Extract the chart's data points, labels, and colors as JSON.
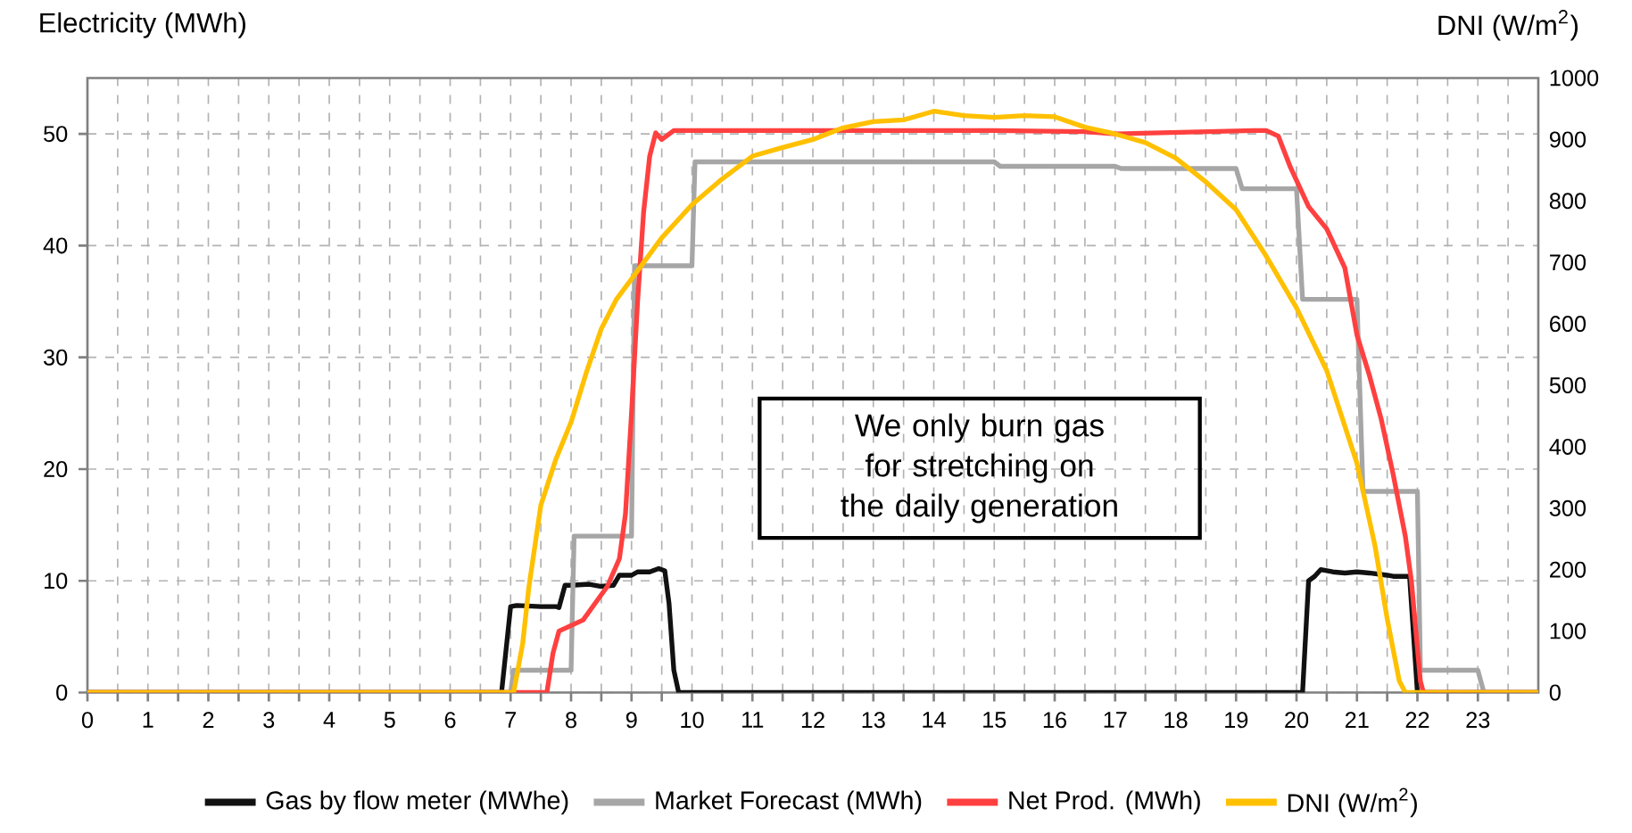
{
  "chart_data": {
    "type": "line",
    "ylabel": "Electricity (MWh)",
    "y2label": "DNI (W/m$^{2}$)",
    "annotations": [
      "We only burn gas for stretching on the daily generation"
    ],
    "xlim": [
      0,
      24
    ],
    "xticks": [
      0,
      {
        "value": 0.5,
        "label": null
      },
      1,
      {
        "value": 1.5,
        "label": null
      },
      2,
      {
        "value": 2.5,
        "label": null
      },
      3,
      {
        "value": 3.5,
        "label": null
      },
      4,
      {
        "value": 4.5,
        "label": null
      },
      5,
      {
        "value": 5.5,
        "label": null
      },
      6,
      {
        "value": 6.5,
        "label": null
      },
      7,
      {
        "value": 7.5,
        "label": null
      },
      8,
      {
        "value": 8.5,
        "label": null
      },
      9,
      {
        "value": 9.5,
        "label": null
      },
      10,
      {
        "value": 10.5,
        "label": null
      },
      11,
      {
        "value": 11.5,
        "label": null
      },
      12,
      {
        "value": 12.5,
        "label": null
      },
      13,
      {
        "value": 13.5,
        "label": null
      },
      14,
      {
        "value": 14.5,
        "label": null
      },
      15,
      {
        "value": 15.5,
        "label": null
      },
      16,
      {
        "value": 16.5,
        "label": null
      },
      17,
      {
        "value": 17.5,
        "label": null
      },
      18,
      {
        "value": 18.5,
        "label": null
      },
      19,
      {
        "value": 19.5,
        "label": null
      },
      20,
      {
        "value": 20.5,
        "label": null
      },
      21,
      {
        "value": 21.5,
        "label": null
      },
      22,
      {
        "value": 22.5,
        "label": null
      },
      23,
      {
        "value": 23.5,
        "label": null
      }
    ],
    "ylim": [
      0,
      55
    ],
    "yticks": [
      0,
      10,
      20,
      30,
      40,
      50
    ],
    "y2lim": [
      0,
      1000
    ],
    "y2ticks": [
      0,
      100,
      200,
      300,
      400,
      500,
      600,
      700,
      800,
      900,
      1000
    ],
    "grid": true,
    "legend": "bottom",
    "series": [
      {
        "name": "Gas by flow meter (MWhe)",
        "color": "#111111",
        "x": [
          0,
          6.85,
          7.0,
          7.1,
          7.5,
          7.75,
          7.8,
          7.9,
          8.0,
          8.3,
          8.5,
          8.7,
          8.8,
          9.0,
          9.1,
          9.3,
          9.45,
          9.55,
          9.62,
          9.7,
          9.78,
          20.1,
          20.2,
          20.3,
          20.4,
          20.6,
          20.8,
          21.0,
          21.2,
          21.5,
          21.6,
          21.8,
          21.87,
          22.0,
          24
        ],
        "values": [
          0,
          0,
          7.7,
          7.8,
          7.7,
          7.7,
          7.6,
          9.6,
          9.6,
          9.7,
          9.5,
          9.6,
          10.5,
          10.5,
          10.8,
          10.8,
          11.1,
          10.9,
          8,
          2,
          0,
          0,
          10,
          10.4,
          11,
          10.8,
          10.7,
          10.8,
          10.7,
          10.5,
          10.4,
          10.4,
          10.4,
          0,
          0
        ]
      },
      {
        "name": "Market Forecast (MWh)",
        "color": "#a6a6a6",
        "x": [
          0,
          7.0,
          7.05,
          8.0,
          8.05,
          9.0,
          9.05,
          10.0,
          10.05,
          15.0,
          15.1,
          17.0,
          17.1,
          19.0,
          19.1,
          20.0,
          20.1,
          21.0,
          21.1,
          22.0,
          22.05,
          23.0,
          23.1,
          24
        ],
        "values": [
          0,
          0,
          2,
          2,
          14,
          14,
          38.2,
          38.2,
          47.5,
          47.5,
          47.1,
          47.1,
          46.9,
          46.9,
          45.1,
          45.1,
          35.2,
          35.2,
          18,
          18,
          2,
          2,
          0,
          0
        ]
      },
      {
        "name": "Net Prod. (MWh)",
        "color": "#ff4040",
        "x": [
          0,
          7.6,
          7.7,
          7.8,
          8.0,
          8.2,
          8.4,
          8.6,
          8.8,
          8.9,
          9.0,
          9.1,
          9.2,
          9.3,
          9.4,
          9.5,
          9.7,
          12,
          15,
          16.5,
          17,
          19.3,
          19.5,
          19.7,
          19.9,
          20.2,
          20.5,
          20.8,
          21.0,
          21.2,
          21.4,
          21.6,
          21.8,
          21.9,
          22.05,
          22.1,
          24
        ],
        "values": [
          0,
          0,
          3.5,
          5.5,
          6,
          6.5,
          8,
          9.5,
          12,
          16,
          25,
          35,
          43,
          48,
          50.1,
          49.5,
          50.3,
          50.3,
          50.3,
          50.2,
          50,
          50.3,
          50.3,
          49.8,
          47,
          43.5,
          41.5,
          38,
          32,
          28.5,
          24.5,
          19.5,
          14,
          10,
          1,
          0,
          0
        ]
      },
      {
        "name": "DNI (W/m$^{2}$)",
        "color": "#ffc000",
        "axis": "y2",
        "x": [
          0,
          7.05,
          7.2,
          7.3,
          7.5,
          7.75,
          8.0,
          8.25,
          8.5,
          8.75,
          9.0,
          9.5,
          10,
          10.5,
          11,
          11.5,
          12,
          12.5,
          13,
          13.5,
          14,
          14.5,
          15,
          15.5,
          16,
          16.5,
          17,
          17.5,
          18,
          18.5,
          19,
          19.5,
          20,
          20.5,
          21,
          21.3,
          21.5,
          21.7,
          21.8,
          24
        ],
        "values": [
          0,
          0,
          80,
          170,
          305,
          380,
          440,
          520,
          592,
          640,
          673,
          740,
          794,
          836,
          873,
          887,
          900,
          919,
          929,
          932,
          946,
          939,
          936,
          939,
          937,
          920,
          909,
          895,
          870,
          831,
          786,
          710,
          626,
          524,
          373,
          238,
          120,
          19,
          0,
          0
        ]
      }
    ]
  }
}
